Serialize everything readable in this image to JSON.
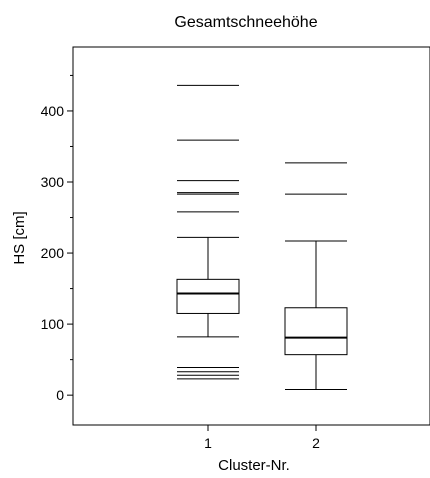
{
  "chart_data": {
    "type": "box",
    "title": "Gesamtschneehöhe",
    "xlabel": "Cluster-Nr.",
    "ylabel": "HS [cm]",
    "categories": [
      "1",
      "2"
    ],
    "ylim": [
      -42,
      490
    ],
    "yticks": [
      0,
      100,
      200,
      300,
      400
    ],
    "y_minor_step": 50,
    "grid": false,
    "boxes": [
      {
        "category": "1",
        "whisker_low": 82,
        "q1": 115,
        "median": 143,
        "q3": 163,
        "whisker_high": 222,
        "outliers": [
          23,
          28,
          33,
          39,
          258,
          283,
          285,
          302,
          359,
          436
        ]
      },
      {
        "category": "2",
        "whisker_low": 8,
        "q1": 57,
        "median": 81,
        "q3": 123,
        "whisker_high": 217,
        "outliers": [
          283,
          327
        ]
      }
    ]
  }
}
